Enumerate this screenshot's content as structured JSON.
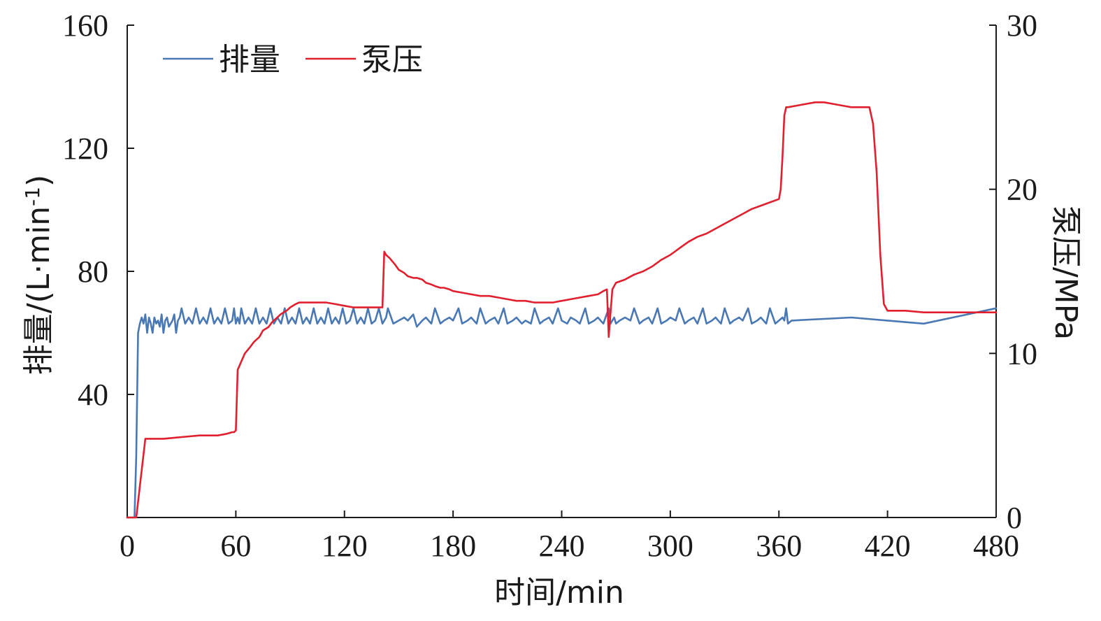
{
  "chart_data": {
    "type": "line",
    "xlabel": "时间/min",
    "ylabel": "排量/(L·min",
    "ylabel_sup": "-1",
    "ylabel_close": ")",
    "y2label": "泵压/MPa",
    "xlim": [
      0,
      480
    ],
    "ylim": [
      0,
      160
    ],
    "y2lim": [
      0,
      30
    ],
    "x_ticks": [
      0,
      60,
      120,
      180,
      240,
      300,
      360,
      420,
      480
    ],
    "y_ticks": [
      40,
      80,
      120,
      160
    ],
    "y2_ticks": [
      0,
      10,
      20,
      30
    ],
    "legend_position": "top-left",
    "colors": {
      "flow": "#4a78b5",
      "pressure": "#e0202e"
    },
    "series": [
      {
        "name": "排量",
        "axis": "left",
        "x": [
          0,
          1,
          2,
          3,
          4,
          5,
          6,
          7,
          8,
          9,
          10,
          11,
          12,
          13,
          14,
          15,
          16,
          17,
          18,
          19,
          20,
          21,
          22,
          23,
          24,
          25,
          26,
          27,
          28,
          29,
          30,
          32,
          34,
          36,
          38,
          40,
          42,
          44,
          46,
          48,
          50,
          52,
          54,
          56,
          58,
          59,
          60,
          61,
          62,
          63,
          65,
          67,
          69,
          71,
          73,
          75,
          77,
          79,
          81,
          83,
          85,
          87,
          89,
          91,
          93,
          95,
          97,
          99,
          101,
          103,
          105,
          107,
          109,
          111,
          113,
          115,
          117,
          119,
          121,
          123,
          125,
          127,
          129,
          131,
          133,
          135,
          137,
          139,
          141,
          142,
          143,
          144,
          147,
          150,
          153,
          155,
          158,
          160,
          163,
          165,
          168,
          170,
          173,
          175,
          178,
          180,
          183,
          185,
          188,
          190,
          193,
          195,
          198,
          200,
          203,
          205,
          208,
          210,
          213,
          215,
          218,
          220,
          223,
          225,
          228,
          230,
          233,
          235,
          238,
          240,
          243,
          245,
          248,
          250,
          253,
          255,
          258,
          260,
          263,
          266,
          267,
          268,
          269,
          270,
          272,
          275,
          278,
          280,
          283,
          285,
          288,
          290,
          293,
          295,
          298,
          300,
          303,
          305,
          308,
          310,
          313,
          315,
          318,
          320,
          323,
          325,
          328,
          330,
          333,
          335,
          338,
          340,
          343,
          345,
          348,
          350,
          353,
          355,
          358,
          360,
          362,
          363,
          364,
          365,
          367,
          400,
          440,
          480
        ],
        "values": [
          0,
          0,
          0,
          0,
          0,
          20,
          60,
          63,
          65,
          63,
          66,
          60,
          65,
          63,
          60,
          65,
          63,
          64,
          62,
          66,
          60,
          64,
          65,
          62,
          63,
          64,
          66,
          60,
          64,
          65,
          68,
          63,
          65,
          63,
          68,
          63,
          65,
          63,
          68,
          63,
          65,
          63,
          68,
          63,
          64,
          68,
          63,
          65,
          63,
          68,
          63,
          65,
          63,
          68,
          63,
          65,
          63,
          68,
          63,
          65,
          63,
          68,
          63,
          65,
          63,
          68,
          63,
          65,
          63,
          68,
          63,
          65,
          63,
          68,
          63,
          65,
          63,
          68,
          63,
          64,
          68,
          63,
          65,
          63,
          68,
          63,
          64,
          68,
          63,
          64,
          65,
          68,
          63,
          64,
          65,
          64,
          66,
          62,
          64,
          65,
          63,
          68,
          63,
          64,
          65,
          64,
          68,
          63,
          64,
          65,
          63,
          68,
          63,
          64,
          65,
          63,
          68,
          63,
          64,
          65,
          63,
          64,
          63,
          68,
          63,
          64,
          65,
          63,
          68,
          64,
          63,
          65,
          64,
          63,
          68,
          63,
          64,
          65,
          63,
          68,
          63,
          64,
          65,
          63,
          64,
          65,
          64,
          68,
          63,
          64,
          65,
          63,
          68,
          63,
          64,
          65,
          64,
          68,
          63,
          64,
          65,
          63,
          68,
          63,
          64,
          65,
          63,
          68,
          63,
          64,
          65,
          64,
          68,
          63,
          64,
          65,
          63,
          68,
          63,
          64,
          65,
          64,
          68,
          63,
          64,
          65,
          63,
          68
        ]
      },
      {
        "name": "泵压",
        "axis": "right",
        "x": [
          0,
          1,
          2,
          3,
          4,
          5,
          10,
          20,
          30,
          40,
          50,
          55,
          58,
          59,
          60,
          61,
          63,
          65,
          68,
          70,
          73,
          75,
          78,
          80,
          83,
          85,
          88,
          90,
          93,
          95,
          100,
          105,
          110,
          115,
          120,
          125,
          130,
          135,
          140,
          141,
          142,
          143,
          145,
          148,
          150,
          153,
          155,
          158,
          160,
          163,
          165,
          168,
          170,
          173,
          175,
          178,
          180,
          185,
          190,
          195,
          200,
          205,
          210,
          215,
          220,
          225,
          230,
          235,
          240,
          245,
          250,
          255,
          260,
          263,
          265,
          266,
          267,
          268,
          270,
          275,
          280,
          285,
          290,
          295,
          300,
          305,
          310,
          315,
          320,
          325,
          330,
          335,
          340,
          345,
          350,
          355,
          360,
          361,
          362,
          363,
          364,
          365,
          370,
          375,
          380,
          385,
          390,
          395,
          400,
          405,
          410,
          412,
          414,
          416,
          418,
          420,
          430,
          440,
          450,
          460,
          470,
          480
        ],
        "values": [
          0,
          0,
          0,
          0,
          0,
          0,
          4.8,
          4.8,
          4.9,
          5.0,
          5.0,
          5.1,
          5.2,
          5.2,
          5.3,
          9.0,
          9.5,
          10.0,
          10.4,
          10.7,
          11.0,
          11.4,
          11.6,
          11.9,
          12.2,
          12.4,
          12.6,
          12.8,
          13.0,
          13.1,
          13.1,
          13.1,
          13.1,
          13.0,
          12.9,
          12.8,
          12.8,
          12.8,
          12.8,
          12.8,
          16.2,
          16.0,
          15.8,
          15.4,
          15.1,
          14.9,
          14.7,
          14.6,
          14.6,
          14.5,
          14.3,
          14.2,
          14.1,
          14.0,
          14.0,
          13.9,
          13.8,
          13.7,
          13.6,
          13.5,
          13.5,
          13.4,
          13.3,
          13.2,
          13.2,
          13.1,
          13.1,
          13.1,
          13.2,
          13.3,
          13.4,
          13.5,
          13.6,
          13.8,
          13.9,
          11.0,
          12.5,
          13.9,
          14.3,
          14.5,
          14.8,
          15.0,
          15.3,
          15.7,
          16.0,
          16.4,
          16.8,
          17.1,
          17.3,
          17.6,
          17.9,
          18.2,
          18.5,
          18.8,
          19.0,
          19.2,
          19.4,
          20.0,
          22.0,
          24.5,
          25.0,
          25.0,
          25.1,
          25.2,
          25.3,
          25.3,
          25.2,
          25.1,
          25.0,
          25.0,
          25.0,
          24.0,
          21.0,
          16.0,
          13.0,
          12.6,
          12.6,
          12.5,
          12.5,
          12.5,
          12.5,
          12.5
        ]
      }
    ]
  }
}
